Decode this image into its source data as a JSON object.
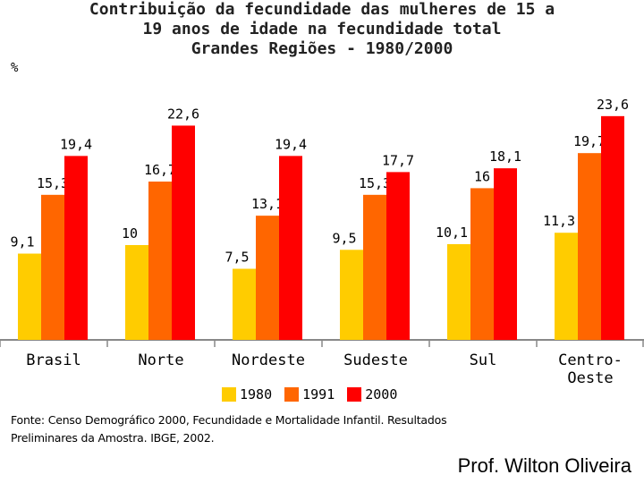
{
  "title": {
    "line1": "Contribuição da fecundidade das mulheres de 15 a",
    "line2": "19 anos de idade na fecundidade total",
    "line3": "Grandes Regiões - 1980/2000"
  },
  "unit_label": "%",
  "source": {
    "line1": "Fonte: Censo Demográfico 2000, Fecundidade e Mortalidade Infantil. Resultados",
    "line2": "Preliminares da Amostra. IBGE, 2002."
  },
  "credit": "Prof. Wilton Oliveira",
  "chart_data": {
    "type": "bar",
    "title": "Contribuição da fecundidade das mulheres de 15 a 19 anos de idade na fecundidade total Grandes Regiões - 1980/2000",
    "ylabel": "%",
    "categories": [
      "Brasil",
      "Norte",
      "Nordeste",
      "Sudeste",
      "Sul",
      "Centro-Oeste"
    ],
    "category_label_lines": [
      [
        "Brasil"
      ],
      [
        "Norte"
      ],
      [
        "Nordeste"
      ],
      [
        "Sudeste"
      ],
      [
        "Sul"
      ],
      [
        "Centro-",
        "Oeste"
      ]
    ],
    "series": [
      {
        "name": "1980",
        "color": "#ffcc00",
        "values": [
          9.1,
          10,
          7.5,
          9.5,
          10.1,
          11.3
        ],
        "labels": [
          "9,1",
          "10",
          "7,5",
          "9,5",
          "10,1",
          "11,3"
        ]
      },
      {
        "name": "1991",
        "color": "#ff6600",
        "values": [
          15.3,
          16.7,
          13.1,
          15.3,
          16,
          19.7
        ],
        "labels": [
          "15,3",
          "16,7",
          "13,1",
          "15,3",
          "16",
          "19,7"
        ]
      },
      {
        "name": "2000",
        "color": "#ff0000",
        "values": [
          19.4,
          22.6,
          19.4,
          17.7,
          18.1,
          23.6
        ],
        "labels": [
          "19,4",
          "22,6",
          "19,4",
          "17,7",
          "18,1",
          "23,6"
        ]
      }
    ],
    "ylim": [
      0,
      24
    ],
    "grid": false,
    "legend": "bottom"
  }
}
